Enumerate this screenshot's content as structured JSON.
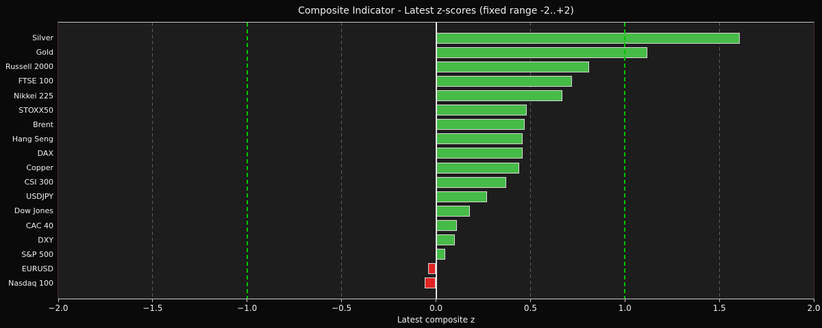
{
  "chart_data": {
    "type": "bar",
    "orientation": "horizontal",
    "title": "Composite Indicator - Latest z-scores (fixed range -2..+2)",
    "xlabel": "Latest composite z",
    "categories": [
      "Silver",
      "Gold",
      "Russell 2000",
      "FTSE 100",
      "Nikkei 225",
      "STOXX50",
      "Brent",
      "Hang Seng",
      "DAX",
      "Copper",
      "CSI 300",
      "USDJPY",
      "Dow Jones",
      "CAC 40",
      "DXY",
      "S&P 500",
      "EURUSD",
      "Nasdaq 100"
    ],
    "values": [
      1.61,
      1.12,
      0.81,
      0.72,
      0.67,
      0.48,
      0.47,
      0.46,
      0.46,
      0.44,
      0.37,
      0.27,
      0.18,
      0.11,
      0.1,
      0.05,
      -0.04,
      -0.06
    ],
    "xlim": [
      -2,
      2
    ],
    "xtick_values": [
      -2,
      -1.5,
      -1,
      -0.5,
      0,
      0.5,
      1,
      1.5,
      2
    ],
    "xtick_labels": [
      "−2.0",
      "−1.5",
      "−1.0",
      "−0.5",
      "0.0",
      "0.5",
      "1.0",
      "1.5",
      "2.0"
    ],
    "gridline_x": [
      -1.5,
      -0.5,
      0.5,
      1.5
    ],
    "reference_lines": [
      {
        "x": -1,
        "style": "dashed",
        "color": "#00c400"
      },
      {
        "x": 1,
        "style": "dashed",
        "color": "#00c400"
      },
      {
        "x": 0,
        "style": "solid",
        "color": "#e8e8e8"
      }
    ],
    "legend": null,
    "grid": true,
    "colors": {
      "positive_bar": "#47bb47",
      "negative_bar": "#e02424",
      "bar_edge": "#d8d8d8",
      "figure_bg": "#0a0a0a",
      "axes_bg": "#1d1d1d",
      "grid_color": "#5f5f5f",
      "ref_green": "#00c400",
      "ref_zero": "#e8e8e8",
      "spine_top_bottom": "#c9c9c9",
      "spine_left_right": "#5a2626",
      "text": "#eeeeee"
    }
  }
}
